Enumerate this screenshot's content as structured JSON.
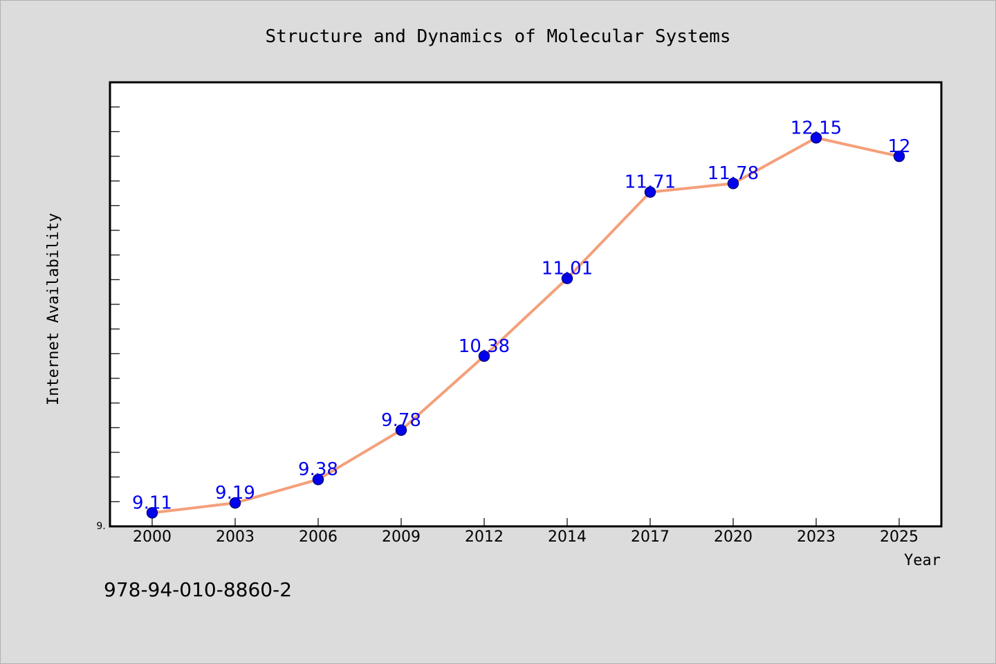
{
  "chart_data": {
    "type": "line",
    "title": "Structure and Dynamics of Molecular Systems",
    "xlabel": "Year",
    "ylabel": "Internet Availability",
    "categories": [
      "2000",
      "2003",
      "2006",
      "2009",
      "2012",
      "2014",
      "2017",
      "2020",
      "2023",
      "2025"
    ],
    "series": [
      {
        "values": [
          9.11,
          9.19,
          9.38,
          9.78,
          10.38,
          11.01,
          11.71,
          11.78,
          12.15,
          12
        ]
      }
    ],
    "data_labels": [
      "9.11",
      "9.19",
      "9.38",
      "9.78",
      "10.38",
      "11.01",
      "11.71",
      "11.78",
      "12.15",
      "12"
    ],
    "y_min_label": "9.",
    "ylim": [
      9.0,
      12.6
    ],
    "grid": false,
    "legend": "none",
    "colors": {
      "line": "#f4a07a",
      "marker_fill": "#0000ee",
      "marker_stroke": "#000080",
      "data_label": "#0000ee",
      "plot_background": "#ffffff",
      "page_background": "#dcdcdc"
    }
  },
  "footer_text": "978-94-010-8860-2"
}
